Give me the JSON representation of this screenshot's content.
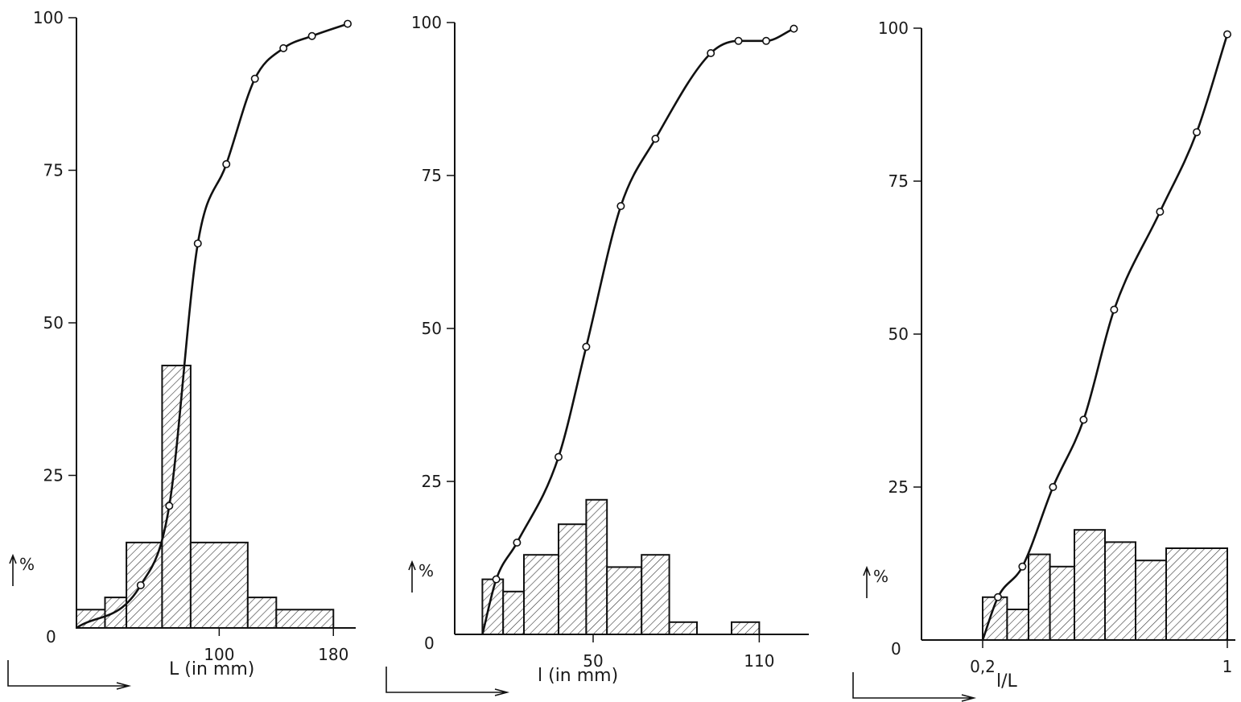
{
  "chart_data": [
    {
      "type": "bar",
      "xlabel": "L (in mm)",
      "ylabel": "%",
      "origin_label": "0",
      "ylim": [
        0,
        100
      ],
      "y_ticks": [
        "0",
        "25",
        "50",
        "75",
        "100"
      ],
      "x_ticks": [
        {
          "value": 100,
          "label": "100"
        },
        {
          "value": 180,
          "label": "180"
        }
      ],
      "xlim": [
        0,
        190
      ],
      "bars": [
        {
          "x0": 0,
          "x1": 20,
          "value": 3
        },
        {
          "x0": 20,
          "x1": 35,
          "value": 5
        },
        {
          "x0": 35,
          "x1": 60,
          "value": 14
        },
        {
          "x0": 60,
          "x1": 80,
          "value": 43
        },
        {
          "x0": 80,
          "x1": 120,
          "value": 14
        },
        {
          "x0": 120,
          "x1": 140,
          "value": 5
        },
        {
          "x0": 140,
          "x1": 180,
          "value": 3
        }
      ],
      "cumulative_points": [
        {
          "x": 45,
          "y": 7
        },
        {
          "x": 65,
          "y": 20
        },
        {
          "x": 85,
          "y": 63
        },
        {
          "x": 105,
          "y": 76
        },
        {
          "x": 125,
          "y": 90
        },
        {
          "x": 145,
          "y": 95
        },
        {
          "x": 165,
          "y": 97
        },
        {
          "x": 190,
          "y": 99
        }
      ]
    },
    {
      "type": "bar",
      "xlabel": "l (in mm)",
      "ylabel": "%",
      "origin_label": "0",
      "ylim": [
        0,
        100
      ],
      "y_ticks": [
        "0",
        "25",
        "50",
        "75",
        "100"
      ],
      "x_ticks": [
        {
          "value": 50,
          "label": "50"
        },
        {
          "value": 110,
          "label": "110"
        }
      ],
      "xlim": [
        0,
        125
      ],
      "bars": [
        {
          "x0": 10,
          "x1": 17.5,
          "value": 9
        },
        {
          "x0": 17.5,
          "x1": 25,
          "value": 7
        },
        {
          "x0": 25,
          "x1": 37.5,
          "value": 13
        },
        {
          "x0": 37.5,
          "x1": 47.5,
          "value": 18
        },
        {
          "x0": 47.5,
          "x1": 55,
          "value": 22
        },
        {
          "x0": 55,
          "x1": 67.5,
          "value": 11
        },
        {
          "x0": 67.5,
          "x1": 77.5,
          "value": 13
        },
        {
          "x0": 77.5,
          "x1": 87.5,
          "value": 2
        },
        {
          "x0": 100,
          "x1": 110,
          "value": 2
        }
      ],
      "cumulative_points": [
        {
          "x": 15,
          "y": 9
        },
        {
          "x": 22.5,
          "y": 15
        },
        {
          "x": 37.5,
          "y": 29
        },
        {
          "x": 47.5,
          "y": 47
        },
        {
          "x": 60,
          "y": 70
        },
        {
          "x": 72.5,
          "y": 81
        },
        {
          "x": 92.5,
          "y": 95
        },
        {
          "x": 102.5,
          "y": 97
        },
        {
          "x": 112.5,
          "y": 97
        },
        {
          "x": 122.5,
          "y": 99
        }
      ]
    },
    {
      "type": "bar",
      "xlabel": "l/L",
      "ylabel": "%",
      "origin_label": "0",
      "ylim": [
        0,
        100
      ],
      "y_ticks": [
        "0",
        "25",
        "50",
        "75",
        "100"
      ],
      "x_ticks": [
        {
          "value": 0.2,
          "label": "0,2"
        },
        {
          "value": 1,
          "label": "1"
        }
      ],
      "xlim": [
        0,
        1
      ],
      "bars": [
        {
          "x0": 0.2,
          "x1": 0.28,
          "value": 7
        },
        {
          "x0": 0.28,
          "x1": 0.35,
          "value": 5
        },
        {
          "x0": 0.35,
          "x1": 0.42,
          "value": 14
        },
        {
          "x0": 0.42,
          "x1": 0.5,
          "value": 12
        },
        {
          "x0": 0.5,
          "x1": 0.6,
          "value": 18
        },
        {
          "x0": 0.6,
          "x1": 0.7,
          "value": 16
        },
        {
          "x0": 0.7,
          "x1": 0.8,
          "value": 13
        },
        {
          "x0": 0.8,
          "x1": 1.0,
          "value": 15
        }
      ],
      "cumulative_points": [
        {
          "x": 0.25,
          "y": 7
        },
        {
          "x": 0.33,
          "y": 12
        },
        {
          "x": 0.43,
          "y": 25
        },
        {
          "x": 0.53,
          "y": 36
        },
        {
          "x": 0.63,
          "y": 54
        },
        {
          "x": 0.78,
          "y": 70
        },
        {
          "x": 0.9,
          "y": 83
        },
        {
          "x": 1.0,
          "y": 99
        }
      ]
    }
  ]
}
